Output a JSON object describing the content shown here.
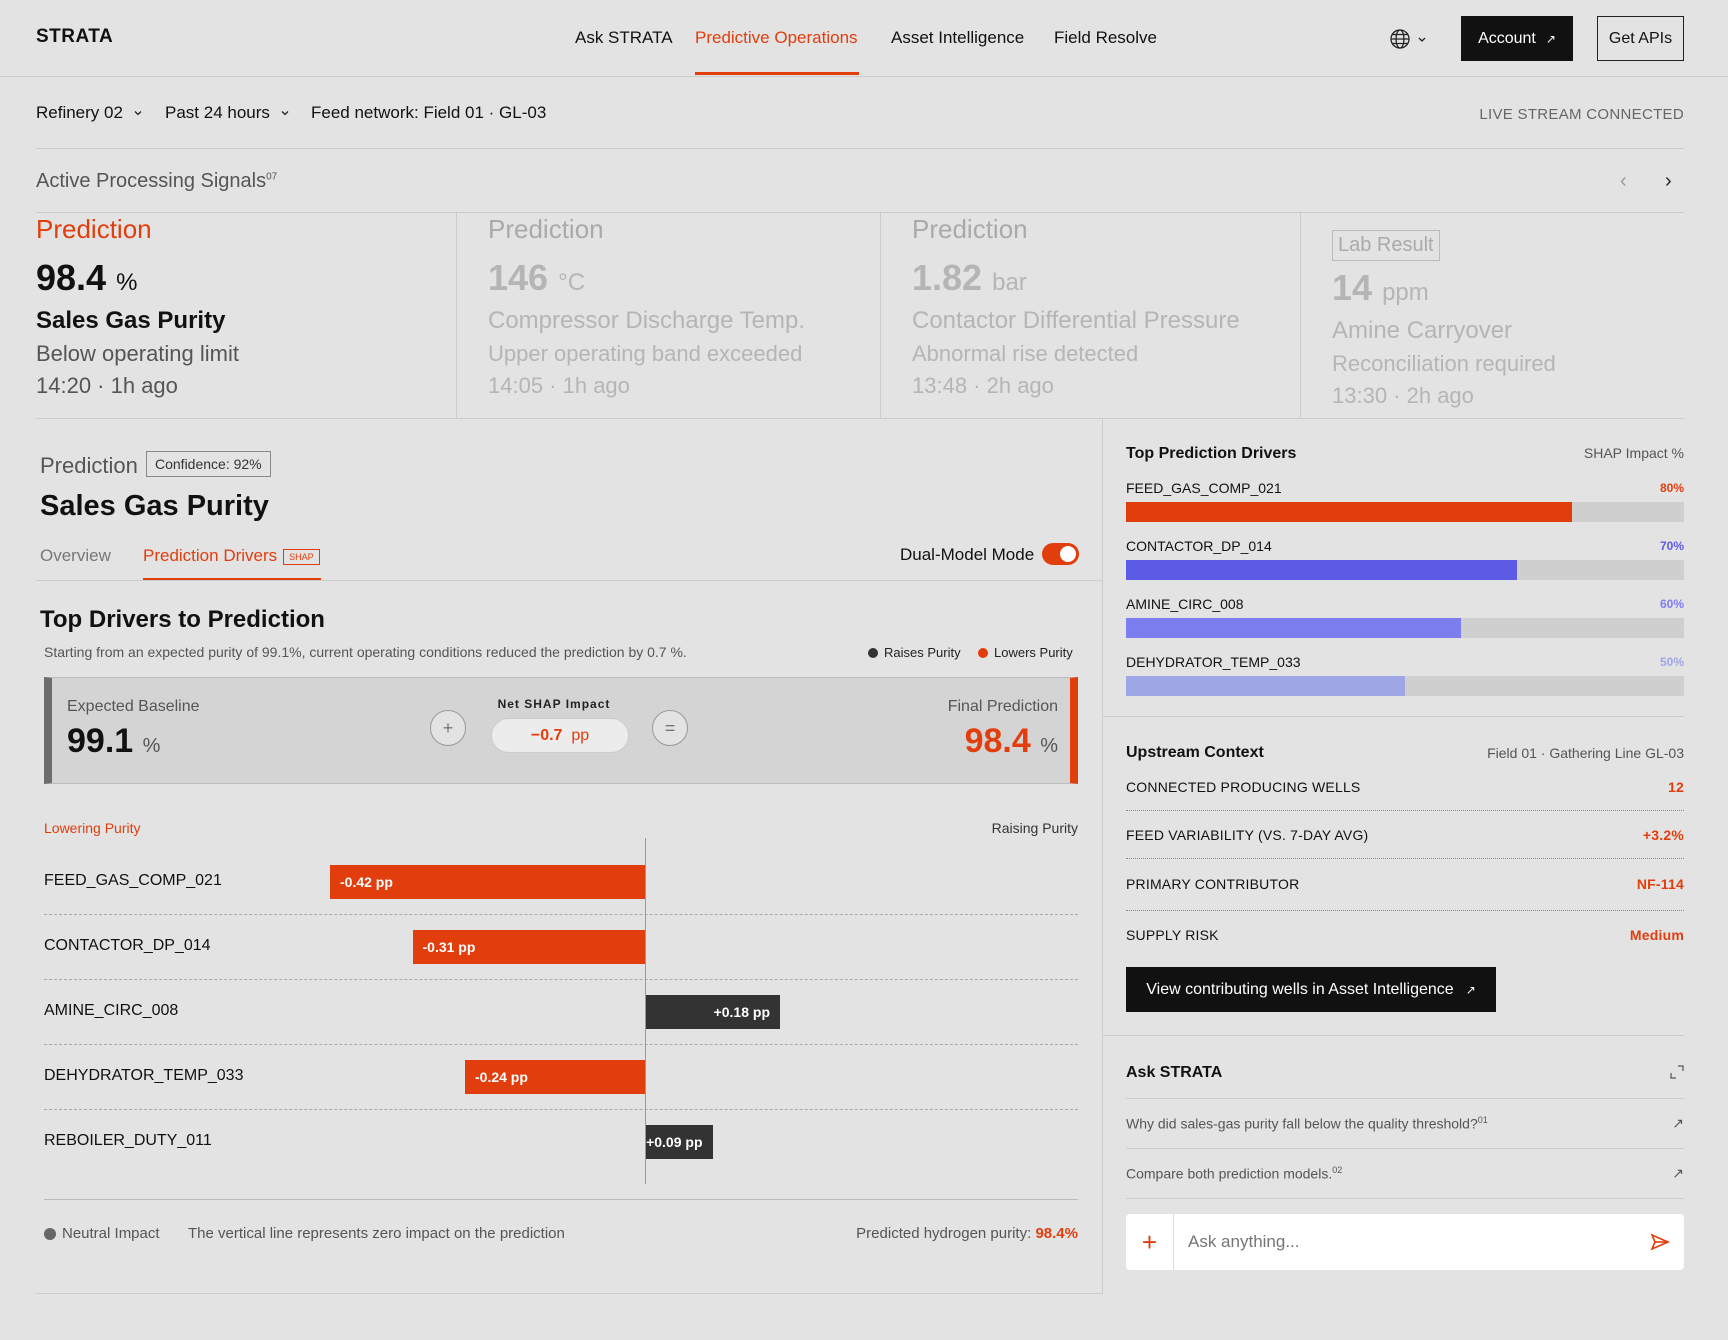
{
  "brand": "STRATA",
  "nav": {
    "items": [
      "Ask STRATA",
      "Predictive Operations",
      "Asset Intelligence",
      "Field Resolve"
    ],
    "account": "Account",
    "apis": "Get APIs"
  },
  "filters": {
    "site": "Refinery 02",
    "range": "Past 24 hours",
    "feed": "Feed network: Field 01 · GL-03",
    "status": "LIVE STREAM CONNECTED"
  },
  "signals": {
    "title": "Active Processing Signals",
    "count": "07",
    "cards": [
      {
        "label": "Prediction",
        "value": "98.4",
        "unit": "%",
        "name": "Sales Gas Purity",
        "desc": "Below operating limit",
        "time": "14:20 · 1h ago"
      },
      {
        "label": "Prediction",
        "value": "146",
        "unit": "°C",
        "name": "Compressor Discharge Temp.",
        "desc": "Upper operating band exceeded",
        "time": "14:05 · 1h ago"
      },
      {
        "label": "Prediction",
        "value": "1.82",
        "unit": "bar",
        "name": "Contactor Differential Pressure",
        "desc": "Abnormal rise detected",
        "time": "13:48 · 2h ago"
      },
      {
        "label": "Lab Result",
        "value": "14",
        "unit": "ppm",
        "name": "Amine Carryover",
        "desc": "Reconciliation required",
        "time": "13:30 · 2h ago"
      }
    ]
  },
  "detail": {
    "pred_label": "Prediction",
    "confidence": "Confidence: 92%",
    "title": "Sales Gas Purity",
    "tabs": {
      "overview": "Overview",
      "drivers": "Prediction Drivers",
      "badge": "SHAP"
    },
    "dual_mode": "Dual-Model Mode",
    "drivers_title": "Top Drivers to Prediction",
    "drivers_desc": "Starting from an expected purity of 99.1%, current operating conditions reduced the prediction by 0.7 %.",
    "legend_raise": "Raises Purity",
    "legend_lower": "Lowers Purity",
    "baseline_label": "Expected Baseline",
    "baseline_value": "99.1",
    "pct": "%",
    "net_label": "Net SHAP Impact",
    "net_value": "−0.7",
    "net_unit": "pp",
    "final_label": "Final Prediction",
    "final_value": "98.4",
    "plus": "+",
    "equals": "=",
    "lowering": "Lowering Purity",
    "raising": "Raising Purity",
    "neutral": "Neutral Impact",
    "axis_note": "The vertical line represents zero impact on the prediction",
    "predicted_label": "Predicted hydrogen purity:",
    "predicted_value": "98.4%"
  },
  "chart_data": {
    "type": "bar",
    "orientation": "horizontal",
    "categories": [
      "FEED_GAS_COMP_021",
      "CONTACTOR_DP_014",
      "AMINE_CIRC_008",
      "DEHYDRATOR_TEMP_033",
      "REBOILER_DUTY_011"
    ],
    "values": [
      -0.42,
      -0.31,
      0.18,
      -0.24,
      0.09
    ],
    "labels": [
      "-0.42 pp",
      "-0.31 pp",
      "+0.18 pp",
      "-0.24 pp",
      "+0.09 pp"
    ],
    "colors": {
      "negative": "#e23d0c",
      "positive": "#333333"
    }
  },
  "shap": {
    "title": "Top Prediction Drivers",
    "unit": "SHAP Impact %",
    "items": [
      {
        "name": "FEED_GAS_COMP_021",
        "pct": "80%",
        "value": 0.8,
        "color": "#e23d0c"
      },
      {
        "name": "CONTACTOR_DP_014",
        "pct": "70%",
        "value": 0.7,
        "color": "#5b5be6"
      },
      {
        "name": "AMINE_CIRC_008",
        "pct": "60%",
        "value": 0.6,
        "color": "#7c7ef0"
      },
      {
        "name": "DEHYDRATOR_TEMP_033",
        "pct": "50%",
        "value": 0.5,
        "color": "#9ea6e6"
      }
    ]
  },
  "upstream": {
    "title": "Upstream Context",
    "source": "Field 01 · Gathering Line GL-03",
    "rows": [
      {
        "k": "CONNECTED PRODUCING WELLS",
        "v": "12"
      },
      {
        "k": "FEED VARIABILITY (VS. 7-DAY AVG)",
        "v": "+3.2%"
      },
      {
        "k": "PRIMARY CONTRIBUTOR",
        "v": "NF-114"
      },
      {
        "k": "SUPPLY RISK",
        "v": "Medium"
      }
    ],
    "button": "View contributing wells in Asset Intelligence"
  },
  "ask": {
    "title": "Ask STRATA",
    "questions": [
      {
        "q": "Why did sales-gas purity fall below the quality threshold?",
        "n": "01"
      },
      {
        "q": "Compare both prediction models.",
        "n": "02"
      }
    ],
    "placeholder": "Ask anything..."
  },
  "colors": {
    "accent": "#e23d0c",
    "dark": "#111111",
    "bg": "#e4e3e4"
  }
}
